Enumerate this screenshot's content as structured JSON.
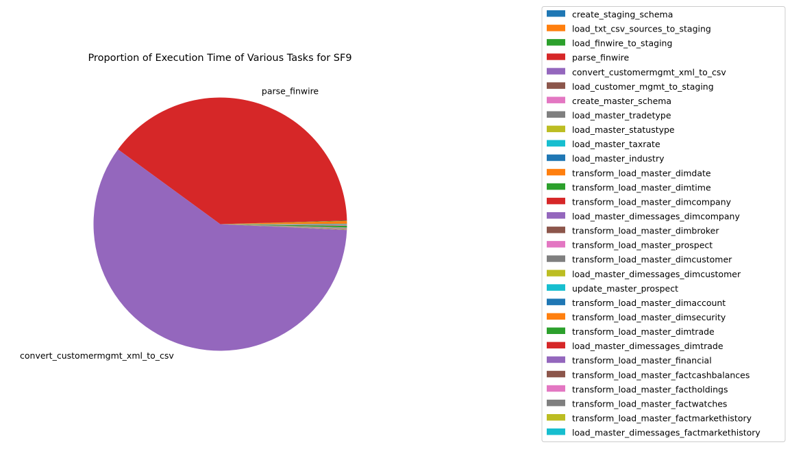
{
  "chart_data": {
    "type": "pie",
    "title": "Proportion of Execution Time of Various Tasks for SF9",
    "start_angle_deg": 0,
    "direction": "counterclockwise",
    "legend_position": "right",
    "slices": [
      {
        "name": "create_staging_schema",
        "label": "",
        "value": 0.05,
        "color": "#1f77b4"
      },
      {
        "name": "load_txt_csv_sources_to_staging",
        "label": "",
        "value": 0.35,
        "color": "#ff7f0e"
      },
      {
        "name": "load_finwire_to_staging",
        "label": "",
        "value": 0.05,
        "color": "#2ca02c"
      },
      {
        "name": "parse_finwire",
        "label": "parse_finwire",
        "value": 39.5,
        "color": "#d62728"
      },
      {
        "name": "convert_customermgmt_xml_to_csv",
        "label": "convert_customermgmt_xml_to_csv",
        "value": 59.3,
        "color": "#9467bd"
      },
      {
        "name": "load_customer_mgmt_to_staging",
        "label": "",
        "value": 0.04,
        "color": "#8c564b"
      },
      {
        "name": "create_master_schema",
        "label": "",
        "value": 0.02,
        "color": "#e377c2"
      },
      {
        "name": "load_master_tradetype",
        "label": "",
        "value": 0.01,
        "color": "#7f7f7f"
      },
      {
        "name": "load_master_statustype",
        "label": "",
        "value": 0.01,
        "color": "#bcbd22"
      },
      {
        "name": "load_master_taxrate",
        "label": "",
        "value": 0.01,
        "color": "#17becf"
      },
      {
        "name": "load_master_industry",
        "label": "",
        "value": 0.01,
        "color": "#1f77b4"
      },
      {
        "name": "transform_load_master_dimdate",
        "label": "",
        "value": 0.03,
        "color": "#ff7f0e"
      },
      {
        "name": "transform_load_master_dimtime",
        "label": "",
        "value": 0.03,
        "color": "#2ca02c"
      },
      {
        "name": "transform_load_master_dimcompany",
        "label": "",
        "value": 0.03,
        "color": "#d62728"
      },
      {
        "name": "load_master_dimessages_dimcompany",
        "label": "",
        "value": 0.01,
        "color": "#9467bd"
      },
      {
        "name": "transform_load_master_dimbroker",
        "label": "",
        "value": 0.01,
        "color": "#8c564b"
      },
      {
        "name": "transform_load_master_prospect",
        "label": "",
        "value": 0.02,
        "color": "#e377c2"
      },
      {
        "name": "transform_load_master_dimcustomer",
        "label": "",
        "value": 0.04,
        "color": "#7f7f7f"
      },
      {
        "name": "load_master_dimessages_dimcustomer",
        "label": "",
        "value": 0.01,
        "color": "#bcbd22"
      },
      {
        "name": "update_master_prospect",
        "label": "",
        "value": 0.01,
        "color": "#17becf"
      },
      {
        "name": "transform_load_master_dimaccount",
        "label": "",
        "value": 0.03,
        "color": "#1f77b4"
      },
      {
        "name": "transform_load_master_dimsecurity",
        "label": "",
        "value": 0.02,
        "color": "#ff7f0e"
      },
      {
        "name": "transform_load_master_dimtrade",
        "label": "",
        "value": 0.2,
        "color": "#2ca02c"
      },
      {
        "name": "load_master_dimessages_dimtrade",
        "label": "",
        "value": 0.02,
        "color": "#d62728"
      },
      {
        "name": "transform_load_master_financial",
        "label": "",
        "value": 0.04,
        "color": "#9467bd"
      },
      {
        "name": "transform_load_master_factcashbalances",
        "label": "",
        "value": 0.03,
        "color": "#8c564b"
      },
      {
        "name": "transform_load_master_factholdings",
        "label": "",
        "value": 0.02,
        "color": "#e377c2"
      },
      {
        "name": "transform_load_master_factwatches",
        "label": "",
        "value": 0.03,
        "color": "#7f7f7f"
      },
      {
        "name": "transform_load_master_factmarkethistory",
        "label": "",
        "value": 0.05,
        "color": "#bcbd22"
      },
      {
        "name": "load_master_dimessages_factmarkethistory",
        "label": "",
        "value": 0.02,
        "color": "#17becf"
      }
    ]
  }
}
